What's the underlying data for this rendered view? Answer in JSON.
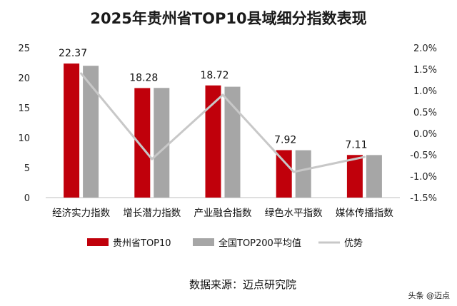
{
  "chart_data": {
    "type": "bar",
    "title": "2025年贵州省TOP10县域细分指数表现",
    "categories": [
      "经济实力指数",
      "增长潜力指数",
      "产业融合指数",
      "绿色水平指数",
      "媒体传播指数"
    ],
    "series": [
      {
        "name": "贵州省TOP10",
        "type": "bar",
        "axis": "left",
        "color": "#c0000b",
        "values": [
          22.37,
          18.28,
          18.72,
          7.92,
          7.11
        ]
      },
      {
        "name": "全国TOP200平均值",
        "type": "bar",
        "axis": "left",
        "color": "#a6a6a6",
        "values": [
          22.0,
          18.3,
          18.5,
          7.9,
          7.1
        ]
      },
      {
        "name": "优势",
        "type": "line",
        "axis": "right",
        "color": "#c8c8c8",
        "values": [
          1.4,
          -0.6,
          0.9,
          -0.9,
          -0.55
        ]
      }
    ],
    "data_labels": [
      "22.37",
      "18.28",
      "18.72",
      "7.92",
      "7.11"
    ],
    "y_left": {
      "min": 0,
      "max": 25,
      "ticks": [
        "0",
        "5",
        "10",
        "15",
        "20",
        "25"
      ]
    },
    "y_right": {
      "min": -1.5,
      "max": 2.0,
      "ticks": [
        "-1.5%",
        "-1.0%",
        "-0.5%",
        "0.0%",
        "0.5%",
        "1.0%",
        "1.5%",
        "2.0%"
      ]
    },
    "legend_position": "bottom",
    "grid": false
  },
  "source_text": "数据来源：迈点研究院",
  "watermark": "头条 @迈点",
  "colors": {
    "accent": "#c0000b",
    "benchmark": "#a6a6a6",
    "line": "#c8c8c8"
  }
}
